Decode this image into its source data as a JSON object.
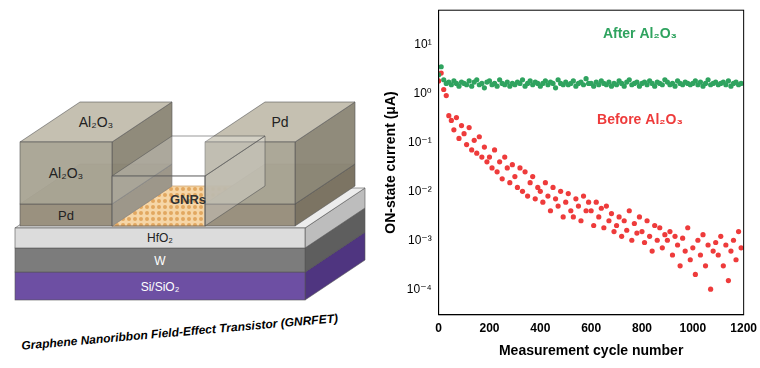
{
  "diagram": {
    "caption": "Graphene Nanoribbon Field-Effect Transistor (GNRFET)",
    "layers": [
      "Si/SiO₂",
      "W",
      "HfO₂"
    ],
    "contacts": [
      "Pd",
      "Pd"
    ],
    "passivation": [
      "Al₂O₃",
      "Al₂O₃"
    ],
    "channel": "GNRs"
  },
  "chart_data": {
    "type": "scatter",
    "x_label": "Measurement cycle number",
    "y_label": "ON-state current (μA)",
    "log": "y",
    "grid": false,
    "xlim": [
      0,
      1200
    ],
    "xticks": [
      0,
      200,
      400,
      600,
      800,
      1000,
      1200
    ],
    "ylim": [
      3e-05,
      50
    ],
    "yticks": [
      {
        "value": 0.0001,
        "label": "10⁻⁴"
      },
      {
        "value": 0.001,
        "label": "10⁻³"
      },
      {
        "value": 0.01,
        "label": "10⁻²"
      },
      {
        "value": 0.1,
        "label": "10⁻¹"
      },
      {
        "value": 1,
        "label": "10⁰"
      },
      {
        "value": 10,
        "label": "10¹"
      }
    ],
    "x": [
      0,
      10,
      20,
      30,
      40,
      50,
      60,
      70,
      80,
      90,
      100,
      110,
      120,
      130,
      140,
      150,
      160,
      170,
      180,
      190,
      200,
      210,
      220,
      230,
      240,
      250,
      260,
      270,
      280,
      290,
      300,
      310,
      320,
      330,
      340,
      350,
      360,
      370,
      380,
      390,
      400,
      410,
      420,
      430,
      440,
      450,
      460,
      470,
      480,
      490,
      500,
      510,
      520,
      530,
      540,
      550,
      560,
      570,
      580,
      590,
      600,
      610,
      620,
      630,
      640,
      650,
      660,
      670,
      680,
      690,
      700,
      710,
      720,
      730,
      740,
      750,
      760,
      770,
      780,
      790,
      800,
      810,
      820,
      830,
      840,
      850,
      860,
      870,
      880,
      890,
      900,
      910,
      920,
      930,
      940,
      950,
      960,
      970,
      980,
      990,
      1000,
      1010,
      1020,
      1030,
      1040,
      1050,
      1060,
      1070,
      1080,
      1090,
      1100,
      1110,
      1120,
      1130,
      1140,
      1150,
      1160,
      1170,
      1180,
      1190
    ],
    "series": [
      {
        "name": "After Al₂O₃",
        "color": "#2fa35f",
        "marker": "circle",
        "values": [
          2.4,
          3.5,
          1.9,
          1.6,
          1.7,
          1.5,
          1.8,
          1.6,
          1.4,
          1.7,
          1.6,
          1.5,
          1.8,
          1.4,
          1.7,
          1.9,
          1.5,
          1.6,
          1.3,
          1.7,
          1.8,
          1.5,
          1.6,
          1.4,
          1.9,
          1.6,
          1.5,
          1.7,
          1.4,
          1.6,
          1.5,
          1.7,
          1.6,
          1.9,
          1.4,
          1.6,
          1.8,
          1.5,
          1.7,
          1.6,
          1.4,
          1.6,
          1.8,
          1.5,
          1.7,
          1.6,
          1.3,
          1.9,
          1.6,
          1.5,
          1.7,
          1.5,
          1.6,
          1.8,
          1.4,
          1.6,
          1.7,
          1.5,
          2.0,
          1.6,
          1.6,
          1.4,
          1.7,
          1.5,
          1.8,
          1.6,
          1.5,
          1.7,
          1.4,
          1.6,
          1.5,
          1.8,
          1.6,
          1.4,
          1.7,
          1.9,
          1.5,
          1.6,
          1.7,
          1.4,
          1.6,
          1.7,
          1.5,
          1.8,
          1.6,
          1.4,
          1.7,
          1.6,
          1.5,
          1.9,
          1.7,
          1.5,
          1.6,
          1.4,
          1.8,
          1.6,
          1.5,
          1.7,
          1.6,
          1.5,
          1.6,
          1.8,
          1.5,
          1.7,
          1.4,
          1.6,
          1.9,
          1.5,
          1.6,
          1.7,
          1.5,
          1.6,
          1.7,
          1.5,
          1.8,
          1.4,
          1.6,
          1.7,
          1.5,
          1.6
        ]
      },
      {
        "name": "Before Al₂O₃",
        "color": "#ee3b3b",
        "marker": "circle",
        "values": [
          1.8,
          2.6,
          1.2,
          0.9,
          0.35,
          0.28,
          0.18,
          0.32,
          0.12,
          0.22,
          0.15,
          0.09,
          0.2,
          0.07,
          0.11,
          0.06,
          0.13,
          0.05,
          0.08,
          0.04,
          0.05,
          0.03,
          0.07,
          0.025,
          0.04,
          0.018,
          0.05,
          0.03,
          0.015,
          0.035,
          0.02,
          0.012,
          0.03,
          0.01,
          0.025,
          0.008,
          0.015,
          0.02,
          0.007,
          0.012,
          0.01,
          0.006,
          0.015,
          0.008,
          0.004,
          0.012,
          0.007,
          0.005,
          0.01,
          0.003,
          0.006,
          0.009,
          0.004,
          0.003,
          0.007,
          0.005,
          0.0025,
          0.008,
          0.004,
          0.006,
          0.004,
          0.002,
          0.006,
          0.003,
          0.0045,
          0.0018,
          0.005,
          0.0025,
          0.0035,
          0.0015,
          0.002,
          0.003,
          0.0012,
          0.0025,
          0.0016,
          0.004,
          0.001,
          0.0022,
          0.0014,
          0.003,
          0.0015,
          0.0009,
          0.0025,
          0.0012,
          0.0006,
          0.002,
          0.001,
          0.0018,
          0.0007,
          0.0013,
          0.001,
          0.0015,
          0.0005,
          0.0012,
          0.0008,
          0.0003,
          0.0011,
          0.0006,
          0.0018,
          0.0004,
          0.0007,
          0.0002,
          0.001,
          0.0005,
          0.0013,
          0.0003,
          0.0008,
          0.0001,
          0.0006,
          0.0009,
          0.0005,
          0.0012,
          0.0003,
          0.0008,
          0.00015,
          0.0006,
          0.001,
          0.0004,
          0.0015,
          0.0007
        ]
      }
    ]
  }
}
